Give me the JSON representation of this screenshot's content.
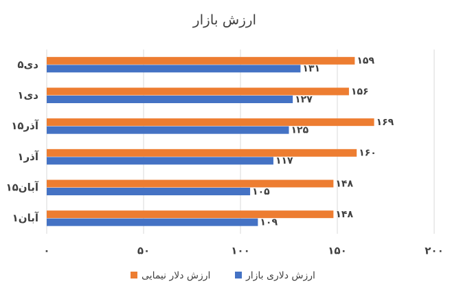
{
  "chart_data": {
    "type": "bar",
    "orientation": "horizontal",
    "title": "ارزش بازار",
    "categories": [
      "۵دی",
      "۱دی",
      "۱۵آذر",
      "۱آذر",
      "۱۵آبان",
      "۱آبان"
    ],
    "series": [
      {
        "name": "ارزش دلار نیمایی",
        "color": "#ed7d31",
        "values": [
          159,
          156,
          169,
          160,
          148,
          148
        ],
        "value_labels": [
          "۱۵۹",
          "۱۵۶",
          "۱۶۹",
          "۱۶۰",
          "۱۴۸",
          "۱۴۸"
        ]
      },
      {
        "name": "ارزش دلاری بازار",
        "color": "#4472c4",
        "values": [
          131,
          127,
          125,
          117,
          105,
          109
        ],
        "value_labels": [
          "۱۳۱",
          "۱۲۷",
          "۱۲۵",
          "۱۱۷",
          "۱۰۵",
          "۱۰۹"
        ]
      }
    ],
    "xlim": [
      0,
      200
    ],
    "xticks": [
      {
        "value": 0,
        "label": "۰"
      },
      {
        "value": 50,
        "label": "۵۰"
      },
      {
        "value": 100,
        "label": "۱۰۰"
      },
      {
        "value": 150,
        "label": "۱۵۰"
      },
      {
        "value": 200,
        "label": "۲۰۰"
      }
    ],
    "grid": true
  }
}
